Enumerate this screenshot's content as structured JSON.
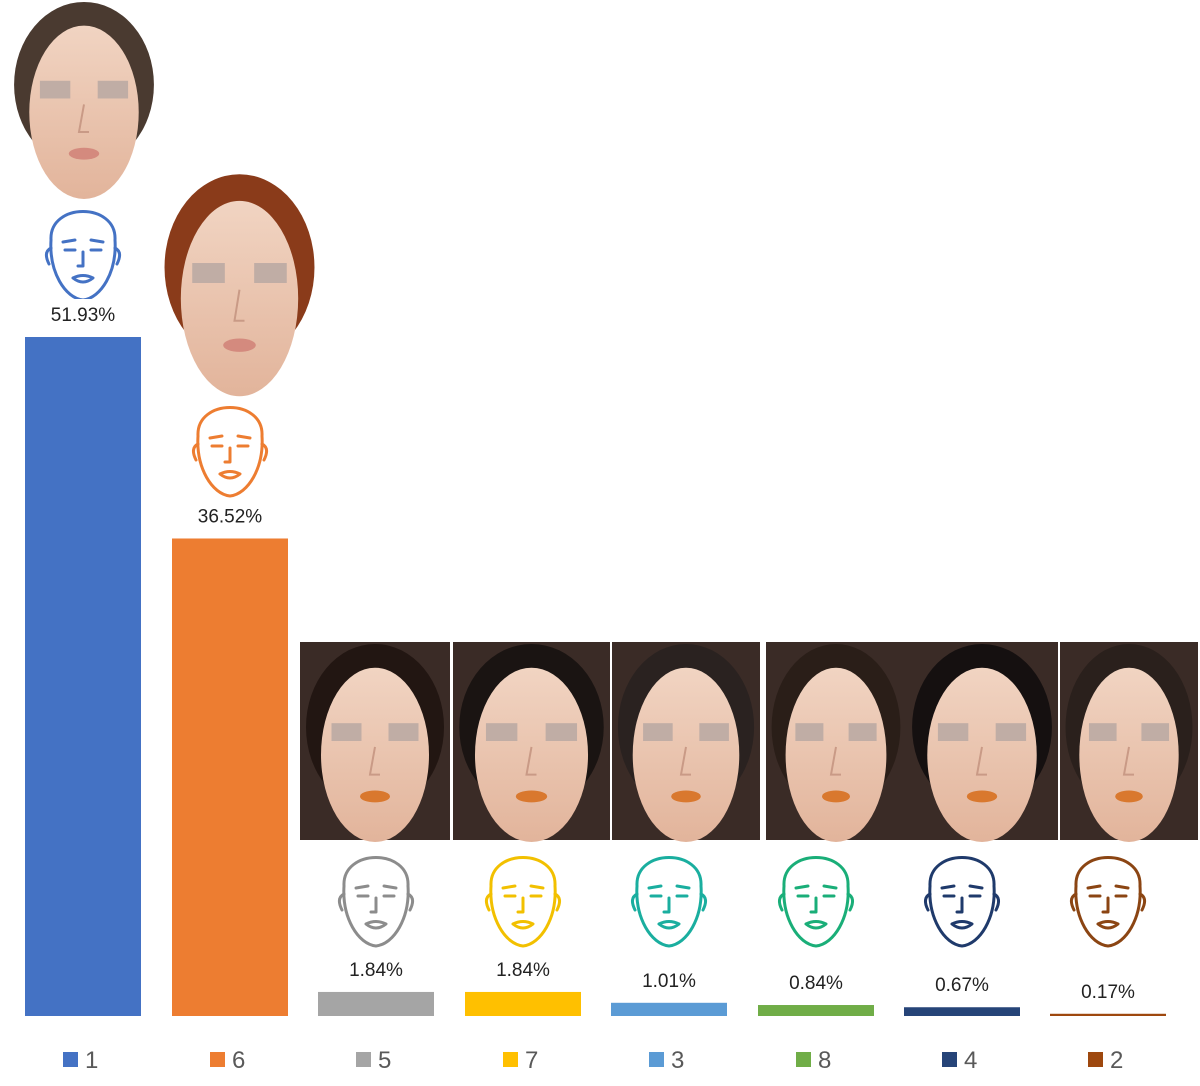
{
  "chart_data": {
    "type": "bar",
    "title": "",
    "xlabel": "",
    "ylabel": "",
    "ylim": [
      0,
      60
    ],
    "grid": false,
    "legend_position": "bottom",
    "categories": [
      "1",
      "6",
      "5",
      "7",
      "3",
      "8",
      "4",
      "2"
    ],
    "values": [
      51.93,
      36.52,
      1.84,
      1.84,
      1.01,
      0.84,
      0.67,
      0.17
    ],
    "value_labels": [
      "51.93%",
      "36.52%",
      "1.84%",
      "1.84%",
      "1.01%",
      "0.84%",
      "0.67%",
      "0.17%"
    ],
    "colors": [
      "#4472C4",
      "#ED7D31",
      "#A5A5A5",
      "#FFC000",
      "#5B9BD5",
      "#70AD47",
      "#264478",
      "#9E480E"
    ],
    "face_outline_colors": [
      "#4472C4",
      "#ED7D31",
      "#8C8C8C",
      "#F2C000",
      "#1AAE9F",
      "#1AAE78",
      "#1F3A6B",
      "#8B4513"
    ],
    "photo_descriptions": [
      "face-photo-type-1",
      "face-photo-type-6",
      "face-photo-type-5",
      "face-photo-type-7",
      "face-photo-type-3",
      "face-photo-type-8",
      "face-photo-type-4",
      "face-photo-type-2"
    ]
  }
}
